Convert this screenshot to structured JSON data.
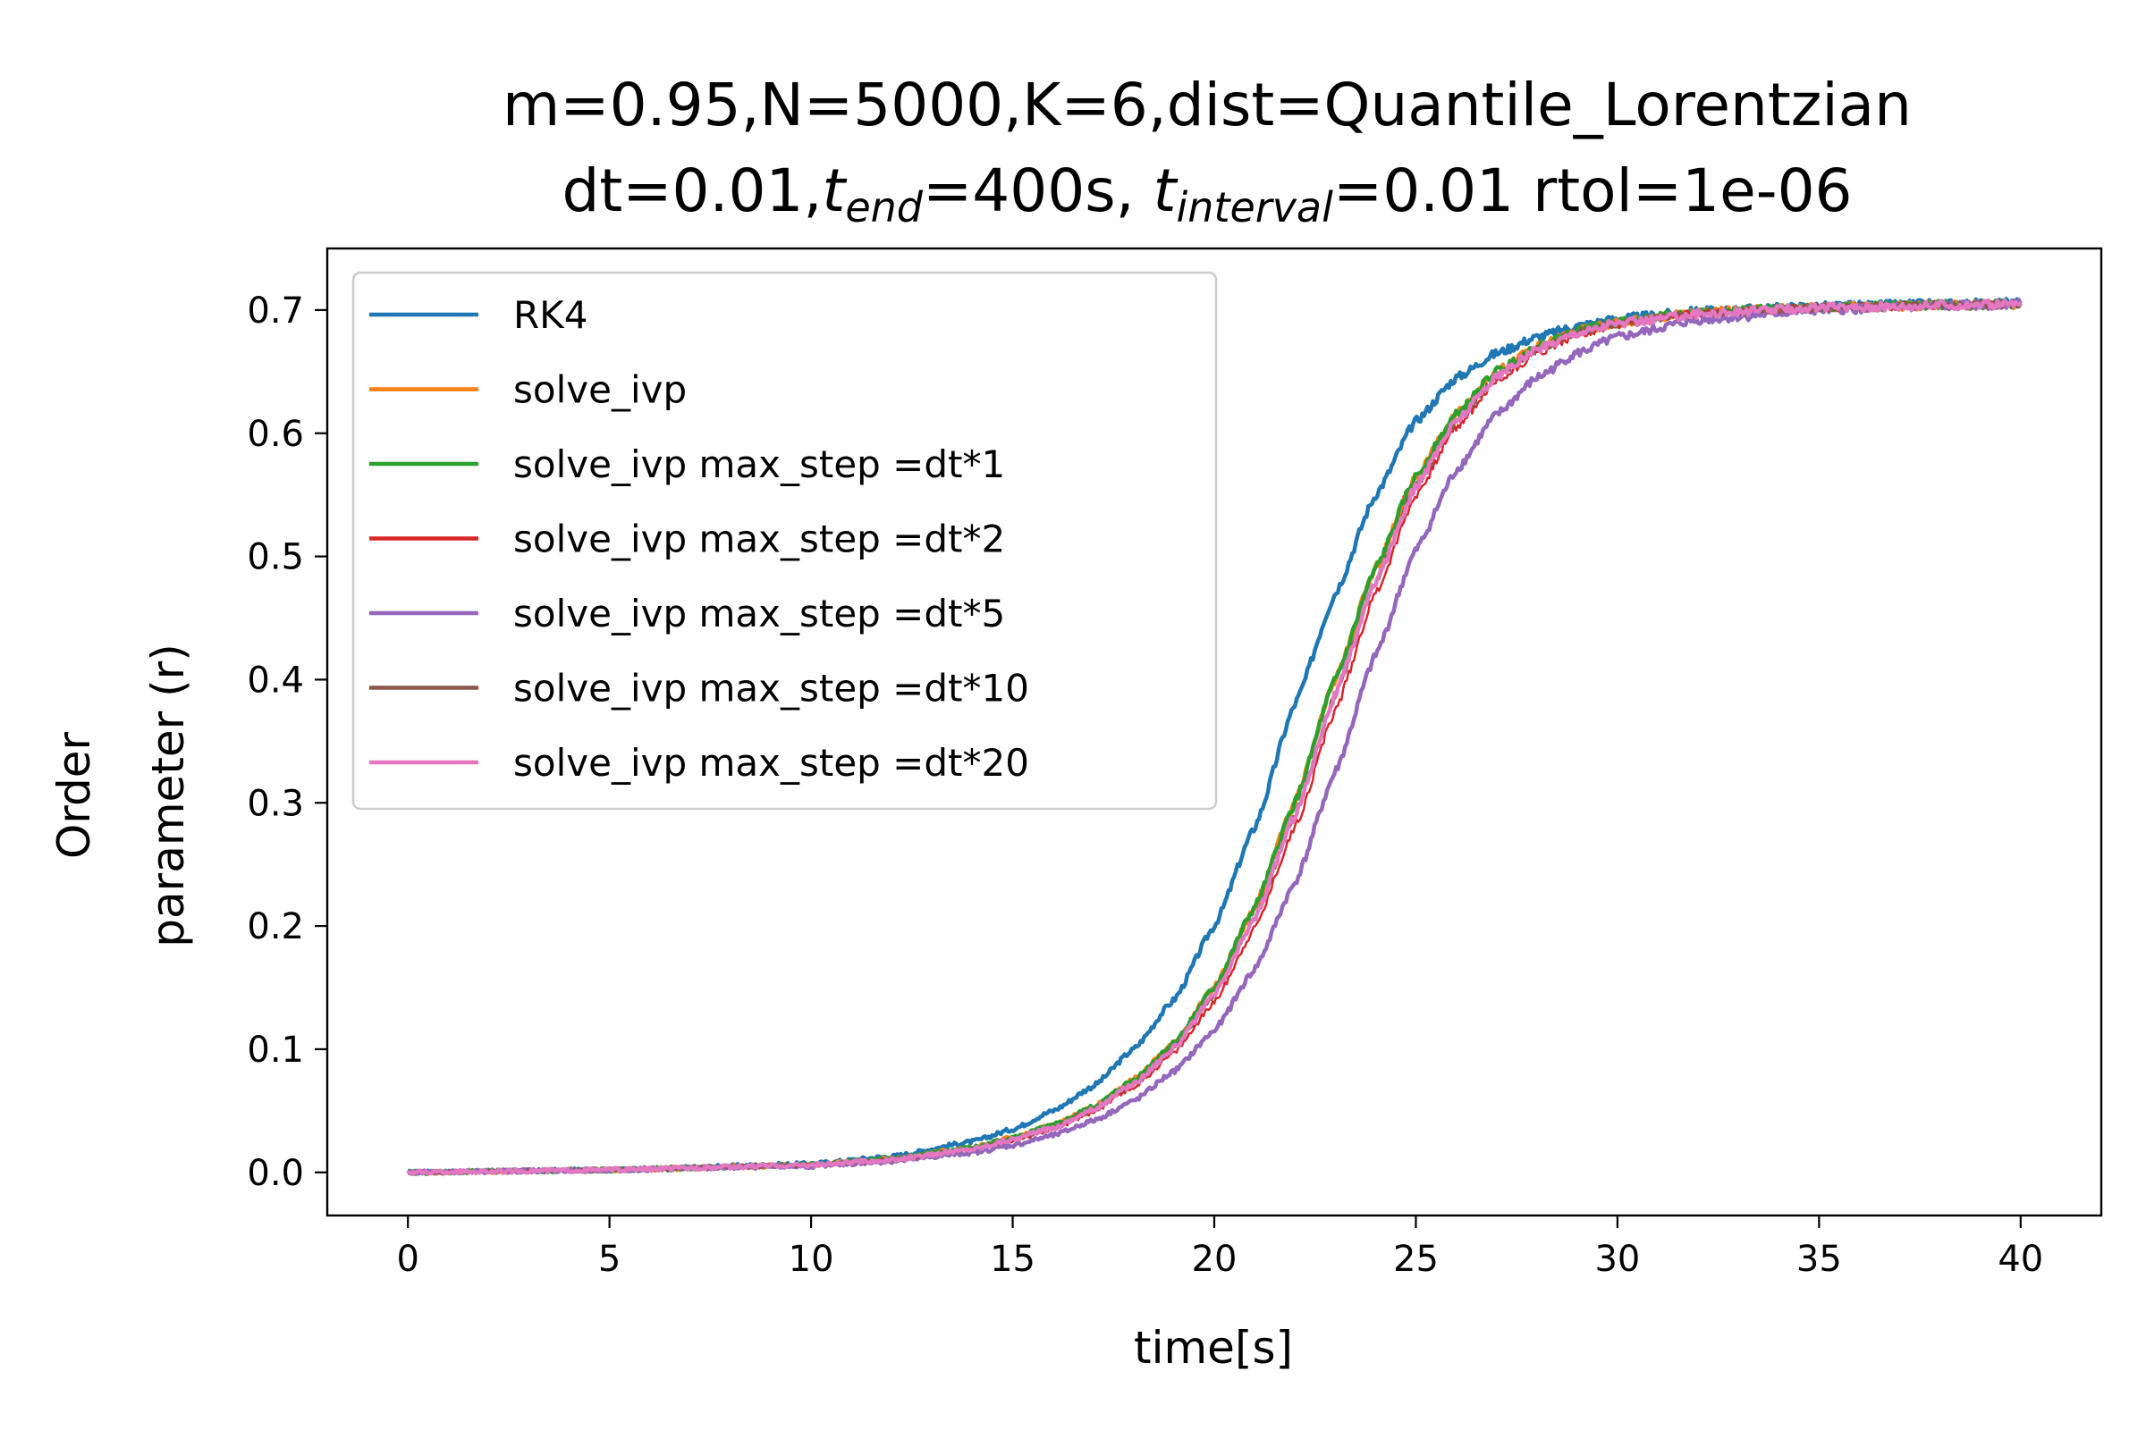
{
  "chart_data": {
    "type": "line",
    "title_line1": "m=0.95,N=5000,K=6,dist=Quantile_Lorentzian",
    "title_line2": {
      "p1": "dt=0.01,",
      "t1": "t",
      "s1": "end",
      "p2": "=400s, ",
      "t2": "t",
      "s2": "interval",
      "p3": "=0.01 rtol=1e-06"
    },
    "xlabel": "time[s]",
    "ylabel_line1": "Order",
    "ylabel_line2": "parameter (r)",
    "xlim": [
      -2,
      42
    ],
    "ylim": [
      -0.035,
      0.75
    ],
    "xticks": [
      0,
      5,
      10,
      15,
      20,
      25,
      30,
      35,
      40
    ],
    "yticks": [
      0.0,
      0.1,
      0.2,
      0.3,
      0.4,
      0.5,
      0.6,
      0.7
    ],
    "xtick_labels": [
      "0",
      "5",
      "10",
      "15",
      "20",
      "25",
      "30",
      "35",
      "40"
    ],
    "ytick_labels": [
      "0.0",
      "0.1",
      "0.2",
      "0.3",
      "0.4",
      "0.5",
      "0.6",
      "0.7"
    ],
    "grid": false,
    "legend_position": "upper-left",
    "series": [
      {
        "name": "RK4",
        "color": "#1f77b4",
        "x": [
          0,
          5,
          10,
          12,
          14,
          15,
          16,
          17,
          18,
          19,
          20,
          21,
          22,
          23,
          24,
          25,
          26,
          27,
          28,
          29,
          30,
          32,
          35,
          38,
          40
        ],
        "y": [
          0.0,
          0.002,
          0.007,
          0.013,
          0.025,
          0.035,
          0.05,
          0.07,
          0.1,
          0.14,
          0.2,
          0.28,
          0.38,
          0.47,
          0.55,
          0.61,
          0.645,
          0.665,
          0.678,
          0.687,
          0.693,
          0.699,
          0.703,
          0.705,
          0.706
        ]
      },
      {
        "name": "solve_ivp",
        "color": "#ff7f0e",
        "x": [
          0,
          5,
          10,
          12,
          14,
          15,
          16,
          17,
          18,
          19,
          20,
          21,
          22,
          23,
          24,
          25,
          26,
          27,
          28,
          29,
          30,
          32,
          35,
          38,
          40
        ],
        "y": [
          0.0,
          0.002,
          0.006,
          0.011,
          0.02,
          0.028,
          0.038,
          0.053,
          0.075,
          0.105,
          0.15,
          0.215,
          0.3,
          0.4,
          0.49,
          0.565,
          0.615,
          0.65,
          0.67,
          0.683,
          0.69,
          0.698,
          0.702,
          0.704,
          0.705
        ]
      },
      {
        "name": "solve_ivp max_step =dt*1",
        "color": "#2ca02c",
        "x": [
          0,
          5,
          10,
          12,
          14,
          15,
          16,
          17,
          18,
          19,
          20,
          21,
          22,
          23,
          24,
          25,
          26,
          27,
          28,
          29,
          30,
          32,
          35,
          38,
          40
        ],
        "y": [
          0.0,
          0.002,
          0.006,
          0.011,
          0.02,
          0.028,
          0.038,
          0.053,
          0.075,
          0.105,
          0.15,
          0.215,
          0.3,
          0.4,
          0.49,
          0.565,
          0.615,
          0.65,
          0.67,
          0.683,
          0.69,
          0.698,
          0.702,
          0.704,
          0.705
        ]
      },
      {
        "name": "solve_ivp max_step =dt*2",
        "color": "#d62728",
        "x": [
          0,
          5,
          10,
          12,
          14,
          15,
          16,
          17,
          18,
          19,
          20,
          21,
          22,
          23,
          24,
          25,
          26,
          27,
          28,
          29,
          30,
          32,
          35,
          38,
          40
        ],
        "y": [
          0.0,
          0.002,
          0.006,
          0.01,
          0.018,
          0.026,
          0.035,
          0.049,
          0.069,
          0.097,
          0.138,
          0.198,
          0.28,
          0.375,
          0.47,
          0.55,
          0.605,
          0.642,
          0.665,
          0.68,
          0.688,
          0.697,
          0.702,
          0.704,
          0.705
        ]
      },
      {
        "name": "solve_ivp max_step =dt*5",
        "color": "#9467bd",
        "x": [
          0,
          5,
          10,
          12,
          14,
          15,
          16,
          17,
          18,
          19,
          20,
          21,
          22,
          23,
          24,
          25,
          26,
          27,
          28,
          29,
          30,
          32,
          35,
          38,
          40
        ],
        "y": [
          0.0,
          0.002,
          0.005,
          0.009,
          0.016,
          0.022,
          0.03,
          0.042,
          0.058,
          0.082,
          0.115,
          0.165,
          0.235,
          0.325,
          0.42,
          0.505,
          0.57,
          0.615,
          0.645,
          0.665,
          0.678,
          0.692,
          0.7,
          0.703,
          0.705
        ]
      },
      {
        "name": "solve_ivp max_step =dt*10",
        "color": "#8c564b",
        "x": [
          0,
          5,
          10,
          12,
          14,
          15,
          16,
          17,
          18,
          19,
          20,
          21,
          22,
          23,
          24,
          25,
          26,
          27,
          28,
          29,
          30,
          32,
          35,
          38,
          40
        ],
        "y": [
          0.0,
          0.002,
          0.006,
          0.01,
          0.019,
          0.027,
          0.036,
          0.051,
          0.072,
          0.101,
          0.144,
          0.206,
          0.29,
          0.388,
          0.48,
          0.557,
          0.61,
          0.646,
          0.668,
          0.682,
          0.689,
          0.697,
          0.702,
          0.704,
          0.705
        ]
      },
      {
        "name": "solve_ivp max_step =dt*20",
        "color": "#e377c2",
        "x": [
          0,
          5,
          10,
          12,
          14,
          15,
          16,
          17,
          18,
          19,
          20,
          21,
          22,
          23,
          24,
          25,
          26,
          27,
          28,
          29,
          30,
          32,
          35,
          38,
          40
        ],
        "y": [
          0.0,
          0.002,
          0.006,
          0.01,
          0.019,
          0.027,
          0.036,
          0.051,
          0.072,
          0.101,
          0.144,
          0.206,
          0.29,
          0.388,
          0.48,
          0.557,
          0.61,
          0.646,
          0.668,
          0.682,
          0.689,
          0.697,
          0.702,
          0.704,
          0.705
        ]
      }
    ]
  }
}
